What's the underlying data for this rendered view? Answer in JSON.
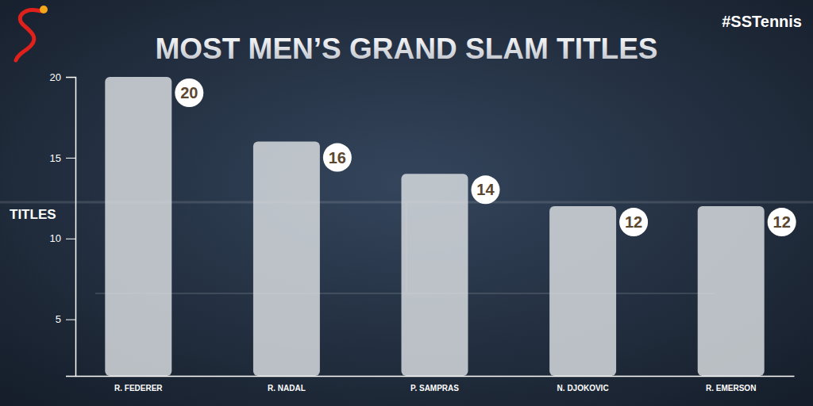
{
  "chart_data": {
    "type": "bar",
    "title": "MOST MEN’S GRAND SLAM TITLES",
    "subtitle": "#SSTennis",
    "y_label": "TITLES",
    "categories": [
      "R. FEDERER",
      "R. NADAL",
      "P. SAMPRAS",
      "N. DJOKOVIC",
      "R. EMERSON"
    ],
    "values": [
      20,
      16,
      14,
      12,
      12
    ],
    "color": "#d6dade",
    "ylim": [
      1.5,
      20
    ],
    "yticks": [
      5,
      10,
      15,
      20
    ],
    "grid": false,
    "data_labels": true
  }
}
